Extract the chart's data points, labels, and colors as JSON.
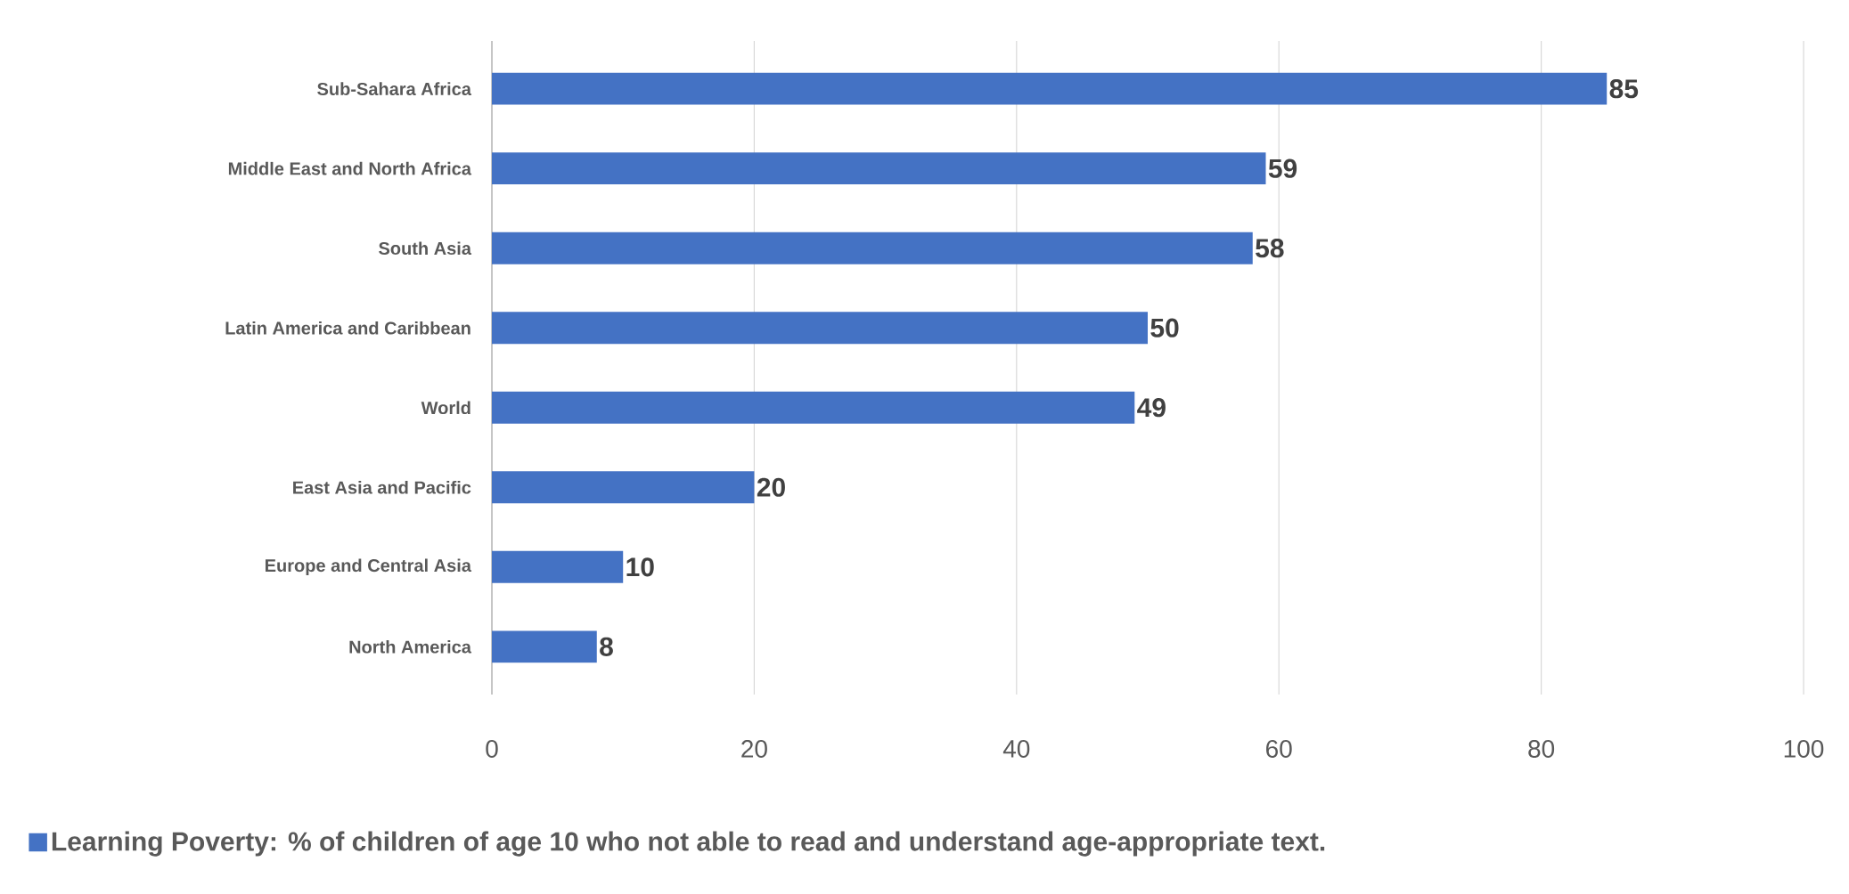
{
  "chart_data": {
    "type": "bar",
    "orientation": "horizontal",
    "categories": [
      "Sub-Sahara Africa",
      "Middle East and North Africa",
      "South Asia",
      "Latin America and Caribbean",
      "World",
      "East Asia and Pacific",
      "Europe and Central Asia",
      "North America"
    ],
    "series": [
      {
        "name": "Learning Poverty: % of children of age 10 who not able to read and understand age-appropriate text.",
        "color": "#4472c4",
        "values": [
          85,
          59,
          58,
          50,
          49,
          20,
          10,
          8
        ]
      }
    ],
    "xlim": [
      0,
      100
    ],
    "xticks": [
      0,
      20,
      40,
      60,
      80,
      100
    ],
    "grid": "x",
    "legend": "bottom",
    "data_labels": true
  }
}
